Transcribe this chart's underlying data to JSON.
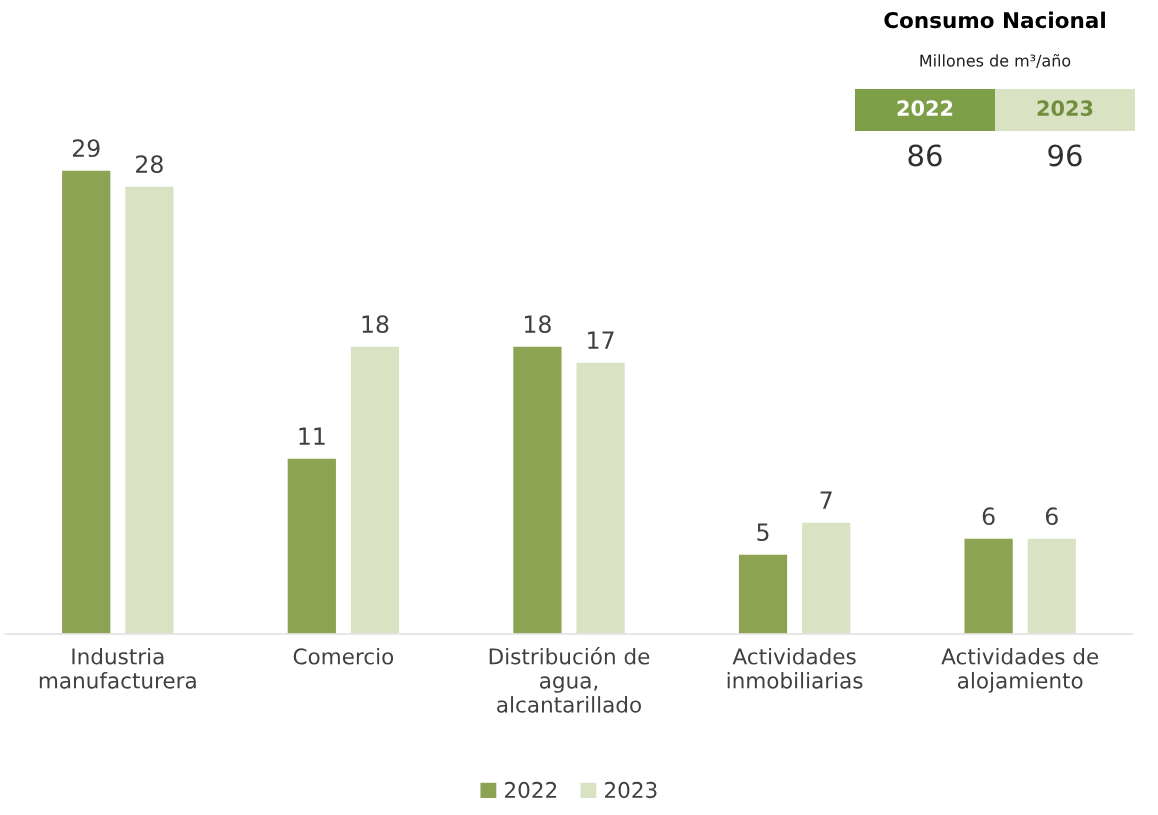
{
  "chart_data": [
    {
      "type": "bar",
      "categories": [
        "Industria\nmanufacturera",
        "Comercio",
        "Distribución de\nagua,\nalcantarillado",
        "Actividades\ninmobiliarias",
        "Actividades de\nalojamiento"
      ],
      "series": [
        {
          "name": "2022",
          "color": "#8ba352",
          "values": [
            29,
            11,
            18,
            5,
            6
          ]
        },
        {
          "name": "2023",
          "color": "#d9e3c4",
          "values": [
            28,
            18,
            17,
            7,
            6
          ]
        }
      ],
      "data_labels": true,
      "legend": "bottom",
      "grid": false
    },
    {
      "type": "other",
      "title": "Consumo Nacional",
      "subtitle": "Millones de m³/año",
      "categories": [
        "2022",
        "2023"
      ],
      "values": [
        86,
        96
      ],
      "data_labels": true,
      "colors": [
        "#7c9f47",
        "#d9e3c4"
      ]
    }
  ]
}
